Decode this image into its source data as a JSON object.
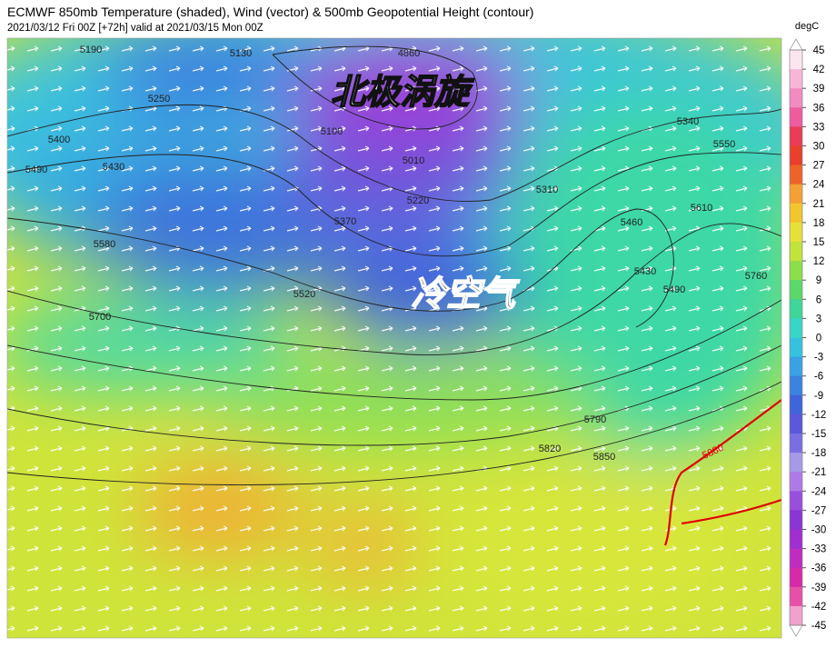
{
  "header": {
    "title": "ECMWF 850mb Temperature (shaded), Wind (vector) & 500mb Geopotential Height (contour)",
    "subtitle": "2021/03/12 Fri 00Z [+72h] valid at 2021/03/15 Mon 00Z"
  },
  "colorbar": {
    "unit": "degC",
    "ticks": [
      45,
      42,
      39,
      36,
      33,
      30,
      27,
      24,
      21,
      18,
      15,
      12,
      9,
      6,
      3,
      0,
      -3,
      -6,
      -9,
      -12,
      -15,
      -18,
      -21,
      -24,
      -27,
      -30,
      -33,
      -36,
      -39,
      -42,
      -45
    ],
    "colors": [
      "#fbe6f0",
      "#f7b6d6",
      "#f28cc0",
      "#ee5c9e",
      "#e83c58",
      "#e8402c",
      "#ee6428",
      "#f4a032",
      "#f2c62e",
      "#e6e03a",
      "#c2e23c",
      "#8ede4a",
      "#5ad86a",
      "#3ed69a",
      "#38d6c6",
      "#36c2de",
      "#38a2e2",
      "#3c82e0",
      "#4064dc",
      "#5a58dc",
      "#7a6ee2",
      "#a69ae8",
      "#b07ae6",
      "#9a4ede",
      "#8a36d6",
      "#a02ed0",
      "#c02cc0",
      "#d62aa8",
      "#e650a8",
      "#f2a0cc"
    ]
  },
  "map": {
    "contour_labels": [
      5190,
      5130,
      4860,
      5250,
      5100,
      5010,
      5220,
      5400,
      5490,
      5430,
      5370,
      5310,
      5460,
      5430,
      5490,
      5610,
      5760,
      5550,
      5340,
      5580,
      5520,
      5700,
      5790,
      5820,
      5850
    ],
    "highlight_contour": {
      "label": 5880,
      "color": "#e00000"
    },
    "annotations": [
      "北极涡旋",
      "冷空气"
    ]
  }
}
